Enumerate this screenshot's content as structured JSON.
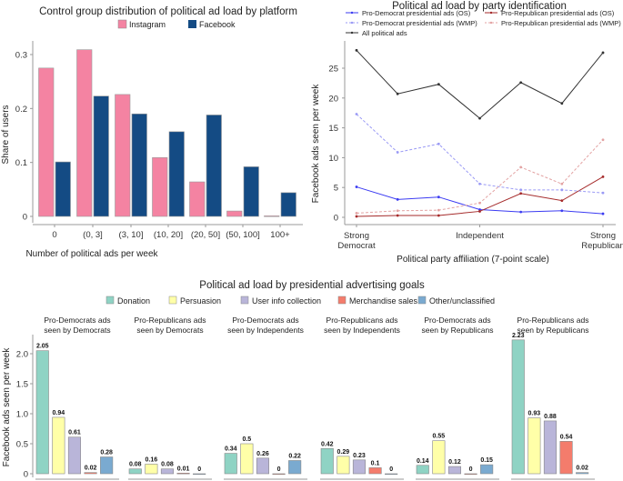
{
  "chart_data": [
    {
      "type": "bar",
      "title": "Control group distribution of political ad load by platform",
      "xlabel": "Number of political ads per week",
      "ylabel": "Share of users",
      "categories": [
        "0",
        "(0, 3]",
        "(3, 10]",
        "(10, 20]",
        "(20, 50]",
        "(50, 100]",
        "100+"
      ],
      "ylim": [
        0,
        0.32
      ],
      "yticks": [
        "0",
        "0.1",
        "0.2",
        "0.3"
      ],
      "legend": "top",
      "series": [
        {
          "name": "Instagram",
          "color": "#f483a2",
          "values": [
            0.275,
            0.309,
            0.226,
            0.109,
            0.064,
            0.01,
            0.001
          ]
        },
        {
          "name": "Facebook",
          "color": "#144b84",
          "values": [
            0.101,
            0.223,
            0.19,
            0.157,
            0.188,
            0.092,
            0.044
          ]
        }
      ]
    },
    {
      "type": "line",
      "title": "Political ad load by party identification",
      "xlabel": "Political party affiliation (7-point scale)",
      "ylabel": "Facebook ads seen per week",
      "x": [
        1,
        2,
        3,
        4,
        5,
        6,
        7
      ],
      "xticks": [
        {
          "x": 1,
          "label": [
            "Strong",
            "Democrat"
          ]
        },
        {
          "x": 4,
          "label": [
            "Independent"
          ]
        },
        {
          "x": 7,
          "label": [
            "Strong",
            "Republican"
          ]
        }
      ],
      "ylim": [
        0,
        29
      ],
      "yticks": [
        "0",
        "5",
        "10",
        "15",
        "20",
        "25"
      ],
      "legend": "top",
      "series": [
        {
          "name": "Pro-Democrat presidential ads (OS)",
          "color": "#3b3bf2",
          "dashed": false,
          "values": [
            5.1,
            3.0,
            3.4,
            1.3,
            0.9,
            1.1,
            0.6
          ]
        },
        {
          "name": "Pro-Republican presidential ads (OS)",
          "color": "#a52a2a",
          "dashed": false,
          "values": [
            0.15,
            0.3,
            0.3,
            1.0,
            4.0,
            2.8,
            6.8
          ]
        },
        {
          "name": "Pro-Democrat presidential ads (WMP)",
          "color": "#9a9af5",
          "dashed": true,
          "values": [
            17.3,
            10.9,
            12.3,
            5.6,
            4.6,
            4.6,
            4.1
          ]
        },
        {
          "name": "Pro-Republican presidential ads (WMP)",
          "color": "#e3a3a3",
          "dashed": true,
          "values": [
            0.7,
            1.1,
            1.2,
            2.4,
            8.4,
            5.6,
            13.0
          ]
        },
        {
          "name": "All political ads",
          "color": "#333333",
          "dashed": false,
          "values": [
            28.0,
            20.7,
            22.3,
            16.6,
            22.6,
            19.1,
            27.6
          ]
        }
      ]
    },
    {
      "type": "bar",
      "title": "Political ad load by presidential advertising goals",
      "ylabel": "Facebook ads seen per week",
      "ylim": [
        0,
        2.3
      ],
      "yticks": [
        "0",
        "0.5",
        "1.0",
        "1.5",
        "2.0"
      ],
      "legend": "top",
      "categories": [
        "Donation",
        "Persuasion",
        "User info collection",
        "Merchandise sales",
        "Other/unclassified"
      ],
      "colors": [
        "#8fd3c4",
        "#ffffa8",
        "#b9b5d9",
        "#f47c6c",
        "#7aaad0"
      ],
      "panels": [
        {
          "title": [
            "Pro-Democrats ads",
            "seen by Democrats"
          ],
          "values": [
            2.05,
            0.94,
            0.61,
            0.02,
            0.28
          ],
          "labels": [
            "2.05",
            "0.94",
            "0.61",
            "0.02",
            "0.28"
          ]
        },
        {
          "title": [
            "Pro-Republicans ads",
            "seen by Democrats"
          ],
          "values": [
            0.08,
            0.16,
            0.08,
            0.01,
            0
          ],
          "labels": [
            "0.08",
            "0.16",
            "0.08",
            "0.01",
            "0"
          ]
        },
        {
          "title": [
            "Pro-Democrats ads",
            "seen by Independents"
          ],
          "values": [
            0.34,
            0.5,
            0.26,
            0,
            0.22
          ],
          "labels": [
            "0.34",
            "0.5",
            "0.26",
            "0",
            "0.22"
          ]
        },
        {
          "title": [
            "Pro-Republicans ads",
            "seen by Independents"
          ],
          "values": [
            0.42,
            0.29,
            0.23,
            0.1,
            0
          ],
          "labels": [
            "0.42",
            "0.29",
            "0.23",
            "0.1",
            "0"
          ]
        },
        {
          "title": [
            "Pro-Democrats ads",
            "seen by Republicans"
          ],
          "values": [
            0.14,
            0.55,
            0.12,
            0,
            0.15
          ],
          "labels": [
            "0.14",
            "0.55",
            "0.12",
            "0",
            "0.15"
          ]
        },
        {
          "title": [
            "Pro-Republicans ads",
            "seen by Republicans"
          ],
          "values": [
            2.23,
            0.93,
            0.88,
            0.54,
            0.02
          ],
          "labels": [
            "2.23",
            "0.93",
            "0.88",
            "0.54",
            "0.02"
          ]
        }
      ]
    }
  ]
}
